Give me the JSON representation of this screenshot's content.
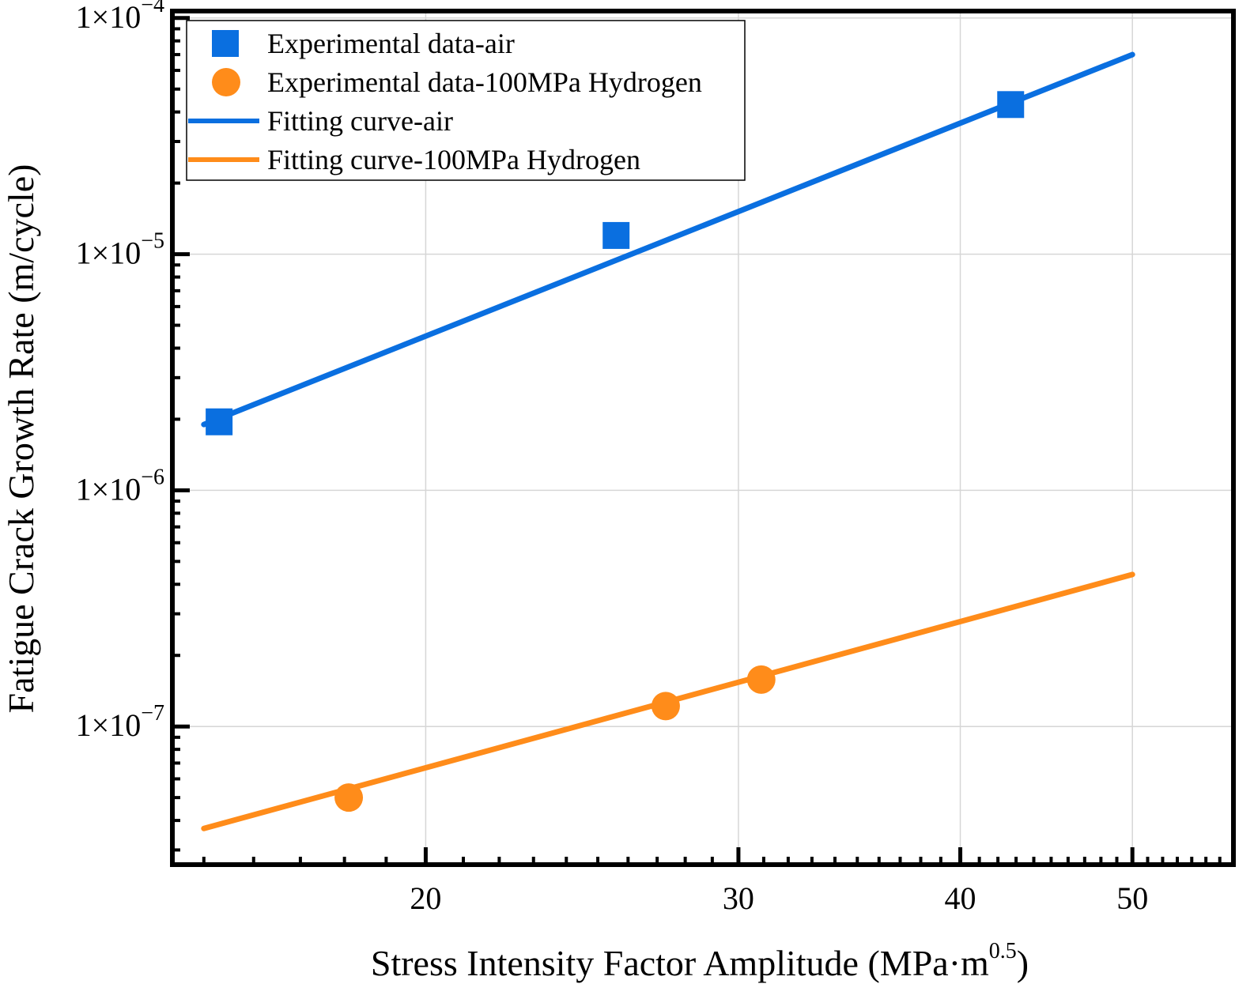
{
  "chart_data": {
    "type": "scatter",
    "scale": {
      "x": "log",
      "y": "log"
    },
    "xlim": [
      14.4,
      57.0
    ],
    "ylim": [
      2.6e-08,
      0.000107
    ],
    "xticks": [
      {
        "value": 20,
        "label": "20"
      },
      {
        "value": 30,
        "label": "30"
      },
      {
        "value": 40,
        "label": "40"
      },
      {
        "value": 50,
        "label": "50"
      }
    ],
    "yticks": [
      {
        "value": 1e-07,
        "mant": "1×10",
        "exp": "−7"
      },
      {
        "value": 1e-06,
        "mant": "1×10",
        "exp": "−6"
      },
      {
        "value": 1e-05,
        "mant": "1×10",
        "exp": "−5"
      },
      {
        "value": 0.0001,
        "mant": "1×10",
        "exp": "−4"
      }
    ],
    "xlabel": "Stress Intensity Factor Amplitude (MPa·m",
    "xlabel_sup": "0.5",
    "xlabel_end": ")",
    "ylabel": "Fatigue Crack Growth Rate (m/cycle)",
    "grid": true,
    "legend_position": "top-left",
    "series": [
      {
        "name": "Experimental data-air",
        "kind": "scatter",
        "marker": "square",
        "color": "#0a6fe0",
        "x": [
          15.3,
          25.6,
          42.7
        ],
        "y": [
          1.95e-06,
          1.2e-05,
          4.3e-05
        ]
      },
      {
        "name": "Experimental data-100MPa Hydrogen",
        "kind": "scatter",
        "marker": "circle",
        "color": "#ff8c1a",
        "x": [
          18.1,
          27.3,
          30.9
        ],
        "y": [
          5e-08,
          1.22e-07,
          1.58e-07
        ]
      },
      {
        "name": "Fitting curve-air",
        "kind": "line",
        "color": "#0a6fe0",
        "x": [
          15.0,
          50.0
        ],
        "y": [
          1.9e-06,
          7e-05
        ]
      },
      {
        "name": "Fitting curve-100MPa Hydrogen",
        "kind": "line",
        "color": "#ff8c1a",
        "x": [
          15.0,
          50.0
        ],
        "y": [
          3.7e-08,
          4.4e-07
        ]
      }
    ]
  }
}
